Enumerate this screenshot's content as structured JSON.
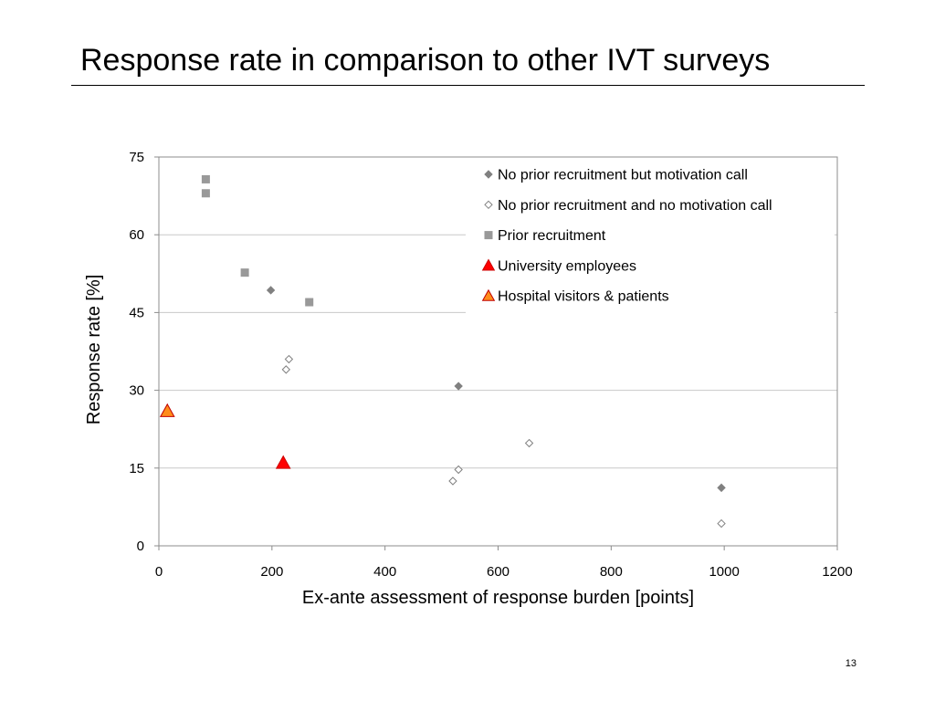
{
  "slide": {
    "title": "Response rate in comparison to other IVT surveys",
    "page_number": "13"
  },
  "chart_data": {
    "type": "scatter",
    "xlabel": "Ex-ante assessment of response burden [points]",
    "ylabel": "Response rate [%]",
    "xlim": [
      0,
      1200
    ],
    "ylim": [
      0,
      75
    ],
    "xticks": [
      0,
      200,
      400,
      600,
      800,
      1000,
      1200
    ],
    "yticks": [
      0,
      15,
      30,
      45,
      60,
      75
    ],
    "grid": "horizontal",
    "legend_position": "top-right",
    "series": [
      {
        "name": "No prior recruitment but motivation call",
        "marker": "diamond-filled",
        "color": "#808080",
        "points": [
          [
            198,
            49.3
          ],
          [
            530,
            30.8
          ],
          [
            995,
            11.2
          ]
        ]
      },
      {
        "name": "No prior recruitment and no motivation call",
        "marker": "diamond-open",
        "color": "#808080",
        "points": [
          [
            230,
            36.0
          ],
          [
            225,
            34.0
          ],
          [
            530,
            14.7
          ],
          [
            520,
            12.5
          ],
          [
            655,
            19.8
          ],
          [
            995,
            4.3
          ]
        ]
      },
      {
        "name": "Prior recruitment",
        "marker": "square",
        "color": "#999999",
        "points": [
          [
            83,
            70.7
          ],
          [
            83,
            68.0
          ],
          [
            152,
            52.7
          ],
          [
            266,
            47.0
          ]
        ]
      },
      {
        "name": "University employees",
        "marker": "triangle",
        "color": "#ff0000",
        "stroke": "#cc0000",
        "points": [
          [
            220,
            16.0
          ]
        ]
      },
      {
        "name": "Hospital visitors & patients",
        "marker": "triangle",
        "color": "#ff8c1a",
        "stroke": "#c00000",
        "points": [
          [
            15,
            26.0
          ]
        ]
      }
    ]
  }
}
